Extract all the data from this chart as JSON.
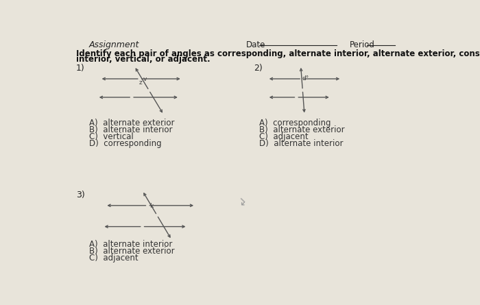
{
  "title": "Assignment",
  "date_label": "Date",
  "period_label": "Period",
  "instructions_line1": "Identify each pair of angles as corresponding, alternate interior, alternate exterior, consecutive",
  "instructions_line2": "interior, vertical, or adjacent.",
  "bg_color": "#e8e4da",
  "line_color": "#555555",
  "text_color": "#333333",
  "header_color": "#222222",
  "q1_label": "1)",
  "q1_choices": [
    "A)  alternate exterior",
    "B)  alternate interior",
    "C)  vertical",
    "D)  corresponding"
  ],
  "q2_label": "2)",
  "q2_choices": [
    "A)  corresponding",
    "B)  alternate exterior",
    "C)  adjacent",
    "D)  alternate interior"
  ],
  "q3_label": "3)",
  "q3_choices": [
    "A)  alternate interior",
    "B)  alternate exterior",
    "C)  adjacent"
  ]
}
